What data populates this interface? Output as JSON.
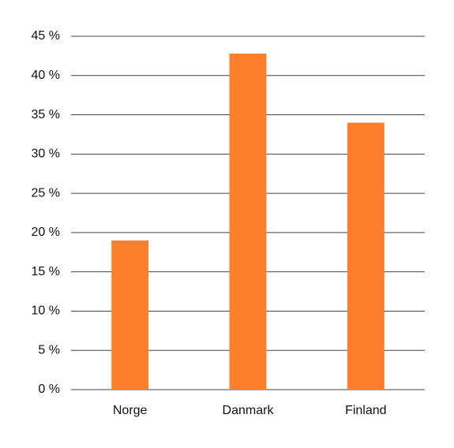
{
  "chart_data": {
    "type": "bar",
    "categories": [
      "Norge",
      "Danmark",
      "Finland"
    ],
    "values": [
      19,
      42.8,
      34
    ],
    "color": "#fd7f2c",
    "ylim": [
      0,
      45
    ],
    "yticks": [
      {
        "value": 0,
        "label": "0 %"
      },
      {
        "value": 5,
        "label": "5 %"
      },
      {
        "value": 10,
        "label": "10 %"
      },
      {
        "value": 15,
        "label": "15 %"
      },
      {
        "value": 20,
        "label": "20 %"
      },
      {
        "value": 25,
        "label": "25 %"
      },
      {
        "value": 30,
        "label": "30 %"
      },
      {
        "value": 35,
        "label": "35 %"
      },
      {
        "value": 40,
        "label": "40 %"
      },
      {
        "value": 45,
        "label": "45 %"
      }
    ],
    "grid": true
  }
}
